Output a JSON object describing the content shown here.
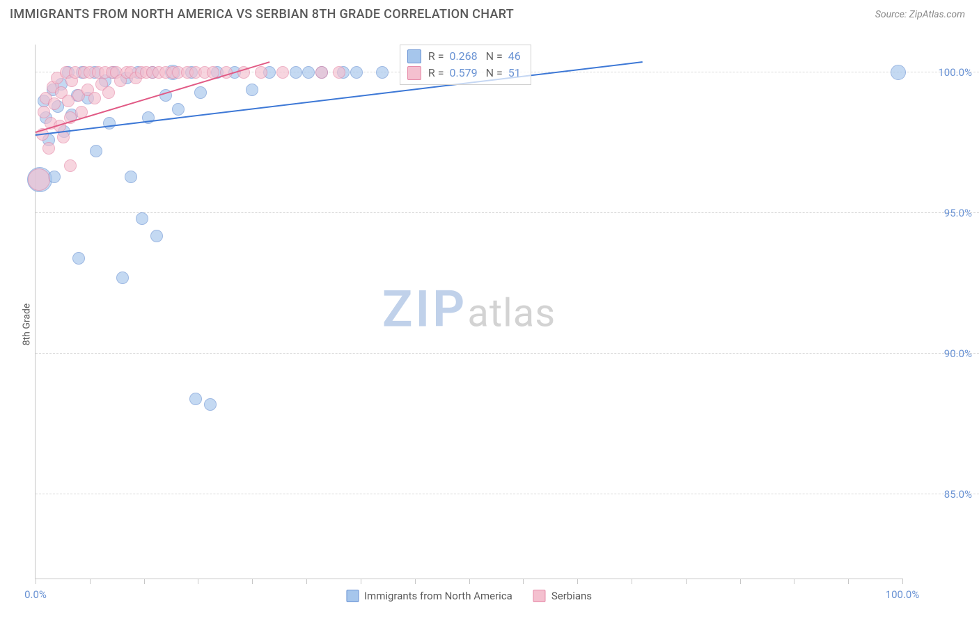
{
  "header": {
    "title": "IMMIGRANTS FROM NORTH AMERICA VS SERBIAN 8TH GRADE CORRELATION CHART",
    "source": "Source: ZipAtlas.com"
  },
  "chart": {
    "type": "scatter",
    "ylabel": "8th Grade",
    "xlim": [
      0,
      100
    ],
    "ylim": [
      82,
      101
    ],
    "background_color": "#ffffff",
    "grid_color": "#d8d8d8",
    "yticks": [
      {
        "v": 85,
        "label": "85.0%"
      },
      {
        "v": 90,
        "label": "90.0%"
      },
      {
        "v": 95,
        "label": "95.0%"
      },
      {
        "v": 100,
        "label": "100.0%"
      }
    ],
    "x_minor_ticks": [
      0,
      6.25,
      12.5,
      18.75,
      25,
      31.25,
      37.5,
      43.75,
      50,
      56.25,
      62.5,
      68.75,
      75,
      81.25,
      87.5,
      93.75,
      100
    ],
    "xtick_labels": [
      {
        "v": 0,
        "label": "0.0%"
      },
      {
        "v": 100,
        "label": "100.0%"
      }
    ],
    "series": [
      {
        "key": "na",
        "label": "Immigrants from North America",
        "fill_color": "#a6c6ec",
        "stroke_color": "#6a93d4",
        "marker_opacity": 0.65,
        "marker_radius": 9,
        "trend": {
          "x1": 0,
          "y1": 97.8,
          "x2": 70,
          "y2": 100.4,
          "color": "#3d78d6",
          "width": 2
        },
        "stats": {
          "R": "0.268",
          "N": "46"
        },
        "points": [
          {
            "x": 0.5,
            "y": 96.2,
            "r": 18
          },
          {
            "x": 1,
            "y": 99
          },
          {
            "x": 1.2,
            "y": 98.4
          },
          {
            "x": 1.5,
            "y": 97.6
          },
          {
            "x": 2,
            "y": 99.4
          },
          {
            "x": 2.2,
            "y": 96.3
          },
          {
            "x": 2.6,
            "y": 98.8
          },
          {
            "x": 3,
            "y": 99.6
          },
          {
            "x": 3.3,
            "y": 97.9
          },
          {
            "x": 3.8,
            "y": 100
          },
          {
            "x": 4.2,
            "y": 98.5
          },
          {
            "x": 4.8,
            "y": 99.2
          },
          {
            "x": 5,
            "y": 93.4
          },
          {
            "x": 5.4,
            "y": 100
          },
          {
            "x": 6,
            "y": 99.1
          },
          {
            "x": 6.8,
            "y": 100
          },
          {
            "x": 7,
            "y": 97.2
          },
          {
            "x": 8,
            "y": 99.7
          },
          {
            "x": 8.5,
            "y": 98.2
          },
          {
            "x": 9,
            "y": 100
          },
          {
            "x": 10,
            "y": 92.7
          },
          {
            "x": 10.5,
            "y": 99.8
          },
          {
            "x": 11,
            "y": 96.3
          },
          {
            "x": 11.8,
            "y": 100
          },
          {
            "x": 12.3,
            "y": 94.8
          },
          {
            "x": 13,
            "y": 98.4
          },
          {
            "x": 13.5,
            "y": 100
          },
          {
            "x": 14,
            "y": 94.2
          },
          {
            "x": 15,
            "y": 99.2
          },
          {
            "x": 15.8,
            "y": 100,
            "r": 11
          },
          {
            "x": 16.5,
            "y": 98.7
          },
          {
            "x": 18,
            "y": 100
          },
          {
            "x": 18.5,
            "y": 88.4
          },
          {
            "x": 19,
            "y": 99.3
          },
          {
            "x": 20.2,
            "y": 88.2
          },
          {
            "x": 21,
            "y": 100
          },
          {
            "x": 23,
            "y": 100
          },
          {
            "x": 25,
            "y": 99.4
          },
          {
            "x": 27,
            "y": 100
          },
          {
            "x": 30,
            "y": 100
          },
          {
            "x": 31.5,
            "y": 100
          },
          {
            "x": 33,
            "y": 100
          },
          {
            "x": 35.5,
            "y": 100
          },
          {
            "x": 37,
            "y": 100
          },
          {
            "x": 40,
            "y": 100
          },
          {
            "x": 99.5,
            "y": 100,
            "r": 11
          }
        ]
      },
      {
        "key": "sr",
        "label": "Serbians",
        "fill_color": "#f4c0cf",
        "stroke_color": "#e68aa8",
        "marker_opacity": 0.65,
        "marker_radius": 9,
        "trend": {
          "x1": 0,
          "y1": 97.9,
          "x2": 27,
          "y2": 100.4,
          "color": "#e15a85",
          "width": 2
        },
        "stats": {
          "R": "0.579",
          "N": "51"
        },
        "points": [
          {
            "x": 0.4,
            "y": 96.2,
            "r": 16
          },
          {
            "x": 0.8,
            "y": 97.8
          },
          {
            "x": 1,
            "y": 98.6
          },
          {
            "x": 1.2,
            "y": 99.1
          },
          {
            "x": 1.5,
            "y": 97.3
          },
          {
            "x": 1.8,
            "y": 98.2
          },
          {
            "x": 2,
            "y": 99.5
          },
          {
            "x": 2.2,
            "y": 98.9
          },
          {
            "x": 2.5,
            "y": 99.8
          },
          {
            "x": 2.8,
            "y": 98.1
          },
          {
            "x": 3,
            "y": 99.3
          },
          {
            "x": 3.2,
            "y": 97.7
          },
          {
            "x": 3.5,
            "y": 100
          },
          {
            "x": 3.8,
            "y": 99
          },
          {
            "x": 4,
            "y": 98.4
          },
          {
            "x": 4.2,
            "y": 99.7
          },
          {
            "x": 4.0,
            "y": 96.7
          },
          {
            "x": 4.6,
            "y": 100
          },
          {
            "x": 5,
            "y": 99.2
          },
          {
            "x": 5.3,
            "y": 98.6
          },
          {
            "x": 5.6,
            "y": 100
          },
          {
            "x": 6,
            "y": 99.4
          },
          {
            "x": 6.3,
            "y": 100
          },
          {
            "x": 6.8,
            "y": 99.1
          },
          {
            "x": 7.2,
            "y": 100
          },
          {
            "x": 7.6,
            "y": 99.6
          },
          {
            "x": 8,
            "y": 100
          },
          {
            "x": 8.4,
            "y": 99.3
          },
          {
            "x": 8.8,
            "y": 100
          },
          {
            "x": 9.3,
            "y": 100
          },
          {
            "x": 9.8,
            "y": 99.7
          },
          {
            "x": 10.5,
            "y": 100
          },
          {
            "x": 11,
            "y": 100
          },
          {
            "x": 11.6,
            "y": 99.8
          },
          {
            "x": 12.2,
            "y": 100
          },
          {
            "x": 12.8,
            "y": 100
          },
          {
            "x": 13.5,
            "y": 100
          },
          {
            "x": 14.2,
            "y": 100
          },
          {
            "x": 15,
            "y": 100
          },
          {
            "x": 15.8,
            "y": 100
          },
          {
            "x": 16.5,
            "y": 100
          },
          {
            "x": 17.5,
            "y": 100
          },
          {
            "x": 18.5,
            "y": 100
          },
          {
            "x": 19.5,
            "y": 100
          },
          {
            "x": 20.5,
            "y": 100
          },
          {
            "x": 22,
            "y": 100
          },
          {
            "x": 24,
            "y": 100
          },
          {
            "x": 26,
            "y": 100
          },
          {
            "x": 28.5,
            "y": 100
          },
          {
            "x": 33,
            "y": 100
          },
          {
            "x": 35,
            "y": 100
          }
        ]
      }
    ],
    "stat_box": {
      "left_pct": 42,
      "top_pct": 0
    },
    "watermark": {
      "part1": "ZIP",
      "part2": "atlas"
    },
    "bottom_legend_items": [
      {
        "series": "na"
      },
      {
        "series": "sr"
      }
    ]
  }
}
